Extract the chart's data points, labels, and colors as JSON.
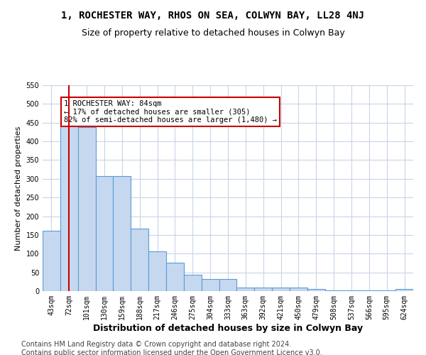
{
  "title": "1, ROCHESTER WAY, RHOS ON SEA, COLWYN BAY, LL28 4NJ",
  "subtitle": "Size of property relative to detached houses in Colwyn Bay",
  "xlabel": "Distribution of detached houses by size in Colwyn Bay",
  "ylabel": "Number of detached properties",
  "categories": [
    "43sqm",
    "72sqm",
    "101sqm",
    "130sqm",
    "159sqm",
    "188sqm",
    "217sqm",
    "246sqm",
    "275sqm",
    "304sqm",
    "333sqm",
    "363sqm",
    "392sqm",
    "421sqm",
    "450sqm",
    "479sqm",
    "508sqm",
    "537sqm",
    "566sqm",
    "595sqm",
    "624sqm"
  ],
  "values": [
    162,
    451,
    438,
    307,
    307,
    167,
    107,
    75,
    44,
    33,
    33,
    10,
    10,
    9,
    9,
    5,
    2,
    2,
    2,
    2,
    5
  ],
  "bar_color": "#c5d8f0",
  "bar_edge_color": "#5b9bd5",
  "vline_x": 1,
  "vline_color": "#cc0000",
  "annotation_text": "1 ROCHESTER WAY: 84sqm\n← 17% of detached houses are smaller (305)\n82% of semi-detached houses are larger (1,480) →",
  "annotation_box_color": "#ffffff",
  "annotation_box_edge": "#cc0000",
  "ylim": [
    0,
    550
  ],
  "yticks": [
    0,
    50,
    100,
    150,
    200,
    250,
    300,
    350,
    400,
    450,
    500,
    550
  ],
  "footer_line1": "Contains HM Land Registry data © Crown copyright and database right 2024.",
  "footer_line2": "Contains public sector information licensed under the Open Government Licence v3.0.",
  "bg_color": "#ffffff",
  "grid_color": "#c8d4e8",
  "title_fontsize": 10,
  "subtitle_fontsize": 9,
  "axis_label_fontsize": 8,
  "tick_fontsize": 7,
  "footer_fontsize": 7
}
